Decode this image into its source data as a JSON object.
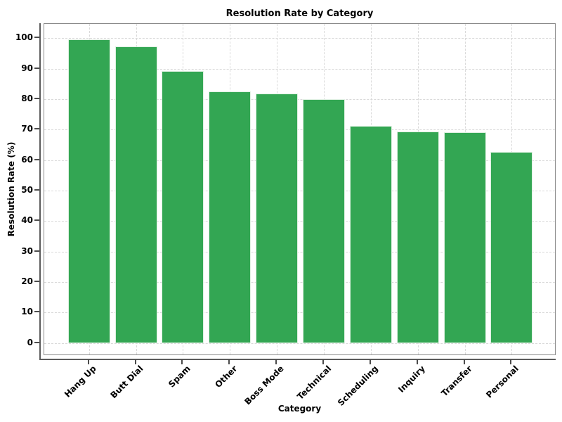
{
  "chart_data": {
    "type": "bar",
    "title": "Resolution Rate by Category",
    "xlabel": "Category",
    "ylabel": "Resolution Rate (%)",
    "categories": [
      "Hang Up",
      "Butt Dial",
      "Spam",
      "Other",
      "Boss Mode",
      "Technical",
      "Scheduling",
      "Inquiry",
      "Transfer",
      "Personal"
    ],
    "values": [
      99.5,
      97.2,
      89.3,
      82.5,
      81.9,
      80.1,
      71.2,
      69.4,
      69.2,
      62.7
    ],
    "yticks": [
      0,
      10,
      20,
      30,
      40,
      50,
      60,
      70,
      80,
      90,
      100
    ],
    "ylim": [
      -4.2,
      104.7
    ],
    "grid": "dashed-both-axes",
    "legend_position": "none",
    "bar_color": "#33a653",
    "bar_edge_color": "#def0e1",
    "grid_color": "#d9d9d9",
    "frame_color": "#898989",
    "spine_color": "#5c5c5c",
    "tick_color": "#4b4b4b",
    "text_color": "#000000",
    "background_color": "#ffffff"
  }
}
